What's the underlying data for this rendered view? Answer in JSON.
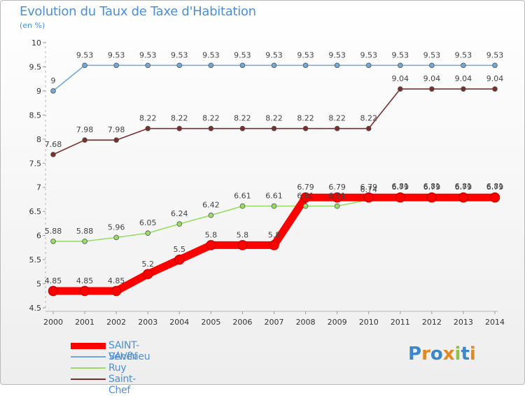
{
  "header": {
    "title": "Evolution du Taux de Taxe d'Habitation",
    "unit": "(en %)"
  },
  "chart_data": {
    "type": "line",
    "title": "Evolution du Taux de Taxe d'Habitation",
    "ylabel": "(en %)",
    "xlabel": "",
    "ylim": [
      4.5,
      10
    ],
    "grid": false,
    "legend_position": "bottom-left",
    "x": [
      "2000",
      "2001",
      "2002",
      "2003",
      "2004",
      "2005",
      "2006",
      "2007",
      "2008",
      "2009",
      "2010",
      "2011",
      "2012",
      "2013",
      "2014"
    ],
    "y_ticks": [
      "4.5",
      "5",
      "5.5",
      "6",
      "6.5",
      "7",
      "7.5",
      "8",
      "8.5",
      "9",
      "9.5",
      "10"
    ],
    "series": [
      {
        "name": "SAINT-SAVIN",
        "color": "#ff0000",
        "values": [
          4.85,
          4.85,
          4.85,
          5.2,
          5.5,
          5.8,
          5.8,
          5.8,
          6.79,
          6.79,
          6.79,
          6.79,
          6.79,
          6.79,
          6.79
        ],
        "labels": [
          "4.85",
          "4.85",
          "4.85",
          "5.2",
          "5.5",
          "5.8",
          "5.8",
          "5.8",
          "6.79",
          "6.79",
          "6.79",
          "6.79",
          "6.79",
          "6.79",
          "6.79"
        ]
      },
      {
        "name": "Vénérieu",
        "color": "#6fa8dc",
        "values": [
          9,
          9.53,
          9.53,
          9.53,
          9.53,
          9.53,
          9.53,
          9.53,
          9.53,
          9.53,
          9.53,
          9.53,
          9.53,
          9.53,
          9.53
        ],
        "labels": [
          "9",
          "9.53",
          "9.53",
          "9.53",
          "9.53",
          "9.53",
          "9.53",
          "9.53",
          "9.53",
          "9.53",
          "9.53",
          "9.53",
          "9.53",
          "9.53",
          "9.53"
        ]
      },
      {
        "name": "Ruy",
        "color": "#99dd66",
        "values": [
          5.88,
          5.88,
          5.96,
          6.05,
          6.24,
          6.42,
          6.61,
          6.61,
          6.61,
          6.61,
          6.74,
          6.81,
          6.81,
          6.81,
          6.81
        ],
        "labels": [
          "5.88",
          "5.88",
          "5.96",
          "6.05",
          "6.24",
          "6.42",
          "6.61",
          "6.61",
          "6.61",
          "6.61",
          "6.74",
          "6.81",
          "6.81",
          "6.81",
          "6.81"
        ]
      },
      {
        "name": "Saint-Chef",
        "color": "#7a2f2f",
        "values": [
          7.68,
          7.98,
          7.98,
          8.22,
          8.22,
          8.22,
          8.22,
          8.22,
          8.22,
          8.22,
          8.22,
          9.04,
          9.04,
          9.04,
          9.04
        ],
        "labels": [
          "7.68",
          "7.98",
          "7.98",
          "8.22",
          "8.22",
          "8.22",
          "8.22",
          "8.22",
          "8.22",
          "8.22",
          "8.22",
          "9.04",
          "9.04",
          "9.04",
          "9.04"
        ]
      }
    ]
  },
  "logo": {
    "text": "Proxiti",
    "letter_colors": [
      "#3a87c9",
      "#e2891f",
      "#3a87c9",
      "#e2891f",
      "#8bc34a",
      "#3a87c9",
      "#e2891f"
    ]
  }
}
